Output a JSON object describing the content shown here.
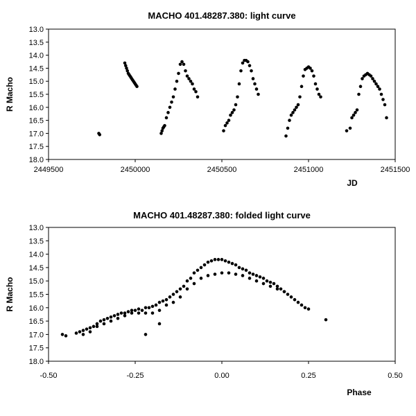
{
  "chart_data": [
    {
      "type": "scatter",
      "title": "MACHO 401.48287.380: light curve",
      "xlabel": "JD",
      "ylabel": "R Macho",
      "xlim": [
        2449500,
        2451500
      ],
      "ylim": [
        13.0,
        18.0
      ],
      "y_inverted": true,
      "x_ticks": [
        "2449500",
        "2450000",
        "2450500",
        "2451000",
        "2451500"
      ],
      "y_ticks": [
        "13.0",
        "13.5",
        "14.0",
        "14.5",
        "15.0",
        "15.5",
        "16.0",
        "16.5",
        "17.0",
        "17.5",
        "18.0"
      ],
      "grid": false,
      "legend": "none",
      "marker_color": "#000000",
      "series": [
        {
          "x": [
            2449790,
            2449795,
            2449940,
            2449945,
            2449950,
            2449955,
            2449960,
            2449965,
            2449970,
            2449975,
            2449980,
            2449985,
            2449990,
            2449995,
            2450000,
            2450005,
            2450010,
            2450150,
            2450155,
            2450160,
            2450165,
            2450170,
            2450180,
            2450190,
            2450200,
            2450210,
            2450220,
            2450230,
            2450240,
            2450250,
            2450260,
            2450270,
            2450280,
            2450290,
            2450300,
            2450310,
            2450320,
            2450330,
            2450340,
            2450350,
            2450360,
            2450510,
            2450520,
            2450530,
            2450540,
            2450550,
            2450560,
            2450570,
            2450580,
            2450590,
            2450600,
            2450610,
            2450620,
            2450630,
            2450640,
            2450650,
            2450660,
            2450670,
            2450680,
            2450690,
            2450700,
            2450710,
            2450870,
            2450880,
            2450890,
            2450900,
            2450910,
            2450920,
            2450930,
            2450940,
            2450950,
            2450960,
            2450970,
            2450980,
            2450990,
            2451000,
            2451010,
            2451020,
            2451030,
            2451040,
            2451050,
            2451060,
            2451070,
            2451220,
            2451240,
            2451250,
            2451260,
            2451270,
            2451280,
            2451290,
            2451300,
            2451310,
            2451320,
            2451330,
            2451340,
            2451350,
            2451360,
            2451370,
            2451380,
            2451390,
            2451400,
            2451410,
            2451420,
            2451430,
            2451440,
            2451450
          ],
          "y": [
            17.0,
            17.05,
            14.3,
            14.4,
            14.5,
            14.6,
            14.7,
            14.75,
            14.8,
            14.85,
            14.9,
            14.95,
            15.0,
            15.05,
            15.1,
            15.15,
            15.2,
            17.0,
            16.9,
            16.8,
            16.75,
            16.7,
            16.4,
            16.2,
            16.0,
            15.8,
            15.6,
            15.3,
            15.0,
            14.7,
            14.35,
            14.25,
            14.35,
            14.6,
            14.8,
            14.9,
            15.0,
            15.1,
            15.3,
            15.4,
            15.6,
            16.9,
            16.7,
            16.6,
            16.5,
            16.3,
            16.2,
            16.1,
            15.9,
            15.6,
            15.1,
            14.6,
            14.3,
            14.2,
            14.2,
            14.25,
            14.4,
            14.6,
            14.9,
            15.1,
            15.3,
            15.5,
            17.1,
            16.8,
            16.5,
            16.3,
            16.2,
            16.1,
            16.0,
            15.9,
            15.6,
            15.2,
            14.8,
            14.55,
            14.5,
            14.45,
            14.5,
            14.6,
            14.8,
            15.1,
            15.3,
            15.5,
            15.6,
            16.9,
            16.8,
            16.4,
            16.3,
            16.2,
            16.1,
            15.5,
            15.2,
            14.9,
            14.8,
            14.75,
            14.7,
            14.75,
            14.8,
            14.9,
            15.0,
            15.1,
            15.2,
            15.3,
            15.5,
            15.7,
            15.9,
            16.4
          ]
        }
      ]
    },
    {
      "type": "scatter",
      "title": "MACHO 401.48287.380: folded light curve",
      "xlabel": "Phase",
      "ylabel": "R Macho",
      "xlim": [
        -0.5,
        0.5
      ],
      "ylim": [
        13.0,
        18.0
      ],
      "y_inverted": true,
      "x_ticks": [
        "-0.50",
        "-0.25",
        "0.00",
        "0.25",
        "0.50"
      ],
      "y_ticks": [
        "13.0",
        "13.5",
        "14.0",
        "14.5",
        "15.0",
        "15.5",
        "16.0",
        "16.5",
        "17.0",
        "17.5",
        "18.0"
      ],
      "grid": false,
      "legend": "none",
      "marker_color": "#000000",
      "series": [
        {
          "x": [
            -0.46,
            -0.45,
            -0.42,
            -0.41,
            -0.4,
            -0.39,
            -0.38,
            -0.37,
            -0.36,
            -0.35,
            -0.34,
            -0.33,
            -0.32,
            -0.31,
            -0.3,
            -0.29,
            -0.28,
            -0.27,
            -0.26,
            -0.25,
            -0.24,
            -0.23,
            -0.22,
            -0.21,
            -0.2,
            -0.19,
            -0.18,
            -0.17,
            -0.16,
            -0.15,
            -0.14,
            -0.13,
            -0.12,
            -0.11,
            -0.1,
            -0.09,
            -0.08,
            -0.07,
            -0.06,
            -0.05,
            -0.04,
            -0.03,
            -0.02,
            -0.01,
            0.0,
            0.01,
            0.02,
            0.03,
            0.04,
            0.05,
            0.06,
            0.07,
            0.08,
            0.09,
            0.1,
            0.11,
            0.12,
            0.13,
            0.14,
            0.15,
            0.16,
            0.17,
            0.18,
            0.19,
            0.2,
            0.21,
            0.22,
            0.23,
            0.24,
            0.25,
            0.3,
            -0.4,
            -0.38,
            -0.36,
            -0.34,
            -0.32,
            -0.3,
            -0.28,
            -0.26,
            -0.24,
            -0.22,
            -0.2,
            -0.18,
            -0.16,
            -0.14,
            -0.12,
            -0.1,
            -0.08,
            -0.06,
            -0.04,
            -0.02,
            0.0,
            0.02,
            0.04,
            0.06,
            0.08,
            0.1,
            0.12,
            0.14,
            0.16,
            0.18,
            -0.22,
            -0.18
          ],
          "y": [
            17.0,
            17.05,
            16.95,
            16.9,
            16.85,
            16.8,
            16.75,
            16.7,
            16.6,
            16.5,
            16.45,
            16.4,
            16.35,
            16.3,
            16.25,
            16.2,
            16.2,
            16.15,
            16.1,
            16.1,
            16.05,
            16.1,
            16.0,
            16.0,
            15.95,
            15.9,
            15.8,
            15.75,
            15.7,
            15.6,
            15.5,
            15.4,
            15.3,
            15.2,
            15.0,
            14.9,
            14.7,
            14.6,
            14.5,
            14.4,
            14.3,
            14.25,
            14.2,
            14.2,
            14.2,
            14.25,
            14.3,
            14.35,
            14.4,
            14.5,
            14.55,
            14.6,
            14.7,
            14.75,
            14.8,
            14.85,
            14.9,
            15.0,
            15.05,
            15.1,
            15.2,
            15.3,
            15.4,
            15.5,
            15.6,
            15.7,
            15.8,
            15.9,
            16.0,
            16.05,
            16.45,
            17.0,
            16.9,
            16.7,
            16.6,
            16.5,
            16.4,
            16.3,
            16.2,
            16.2,
            16.2,
            16.2,
            16.1,
            15.9,
            15.8,
            15.6,
            15.3,
            15.1,
            14.9,
            14.8,
            14.75,
            14.7,
            14.7,
            14.75,
            14.8,
            14.9,
            15.0,
            15.1,
            15.2,
            15.3,
            15.4,
            17.0,
            16.6
          ]
        }
      ]
    }
  ]
}
